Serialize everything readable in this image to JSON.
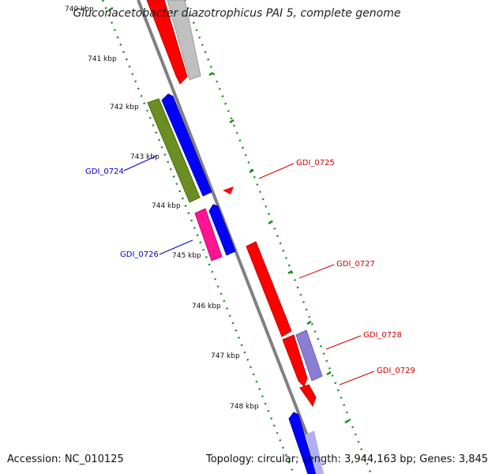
{
  "title": "Gluconacetobacter diazotrophicus PAI 5, complete genome",
  "footer": {
    "accession": "Accession: NC_010125",
    "summary": "Topology: circular; Length: 3,944,163 bp; Genes: 3,845"
  },
  "ruler_labels": [
    "740 kbp",
    "741 kbp",
    "742 kbp",
    "743 kbp",
    "744 kbp",
    "745 kbp",
    "746 kbp",
    "747 kbp",
    "748 kbp"
  ],
  "gene_labels": {
    "left": [
      "GDI_0724",
      "GDI_0726"
    ],
    "right": [
      "GDI_0725",
      "GDI_0727",
      "GDI_0728",
      "GDI_0729"
    ]
  },
  "colors": {
    "forward_gene": "#ff0000",
    "reverse_gene": "#0000ff",
    "pseudo_gene": "#c0c0c0",
    "green_gene": "#6b8e23",
    "magenta_gene": "#ff1493",
    "purple_gene": "#8a7fd4",
    "backbone": "#808080",
    "ruler": "#228b22",
    "left_label": "#0000cc",
    "right_label": "#cc0000"
  }
}
